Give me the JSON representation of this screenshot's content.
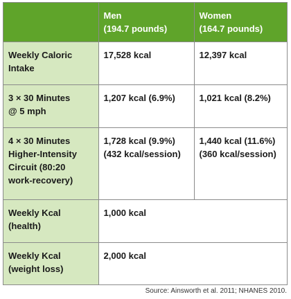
{
  "table": {
    "columns": [
      "",
      {
        "line1": "Men",
        "line2": "(194.7 pounds)"
      },
      {
        "line1": "Women",
        "line2": "(164.7 pounds)"
      }
    ],
    "rows": [
      {
        "label_lines": [
          "Weekly Caloric",
          "Intake"
        ],
        "men_lines": [
          "17,528 kcal"
        ],
        "women_lines": [
          "12,397 kcal"
        ]
      },
      {
        "label_lines": [
          "3 × 30 Minutes",
          "@ 5 mph"
        ],
        "men_lines": [
          "1,207 kcal (6.9%)"
        ],
        "women_lines": [
          "1,021 kcal (8.2%)"
        ]
      },
      {
        "label_lines": [
          "4 × 30 Minutes",
          "Higher-Intensity",
          "Circuit (80:20",
          "work-recovery)"
        ],
        "men_lines": [
          "1,728 kcal (9.9%)",
          "(432 kcal/session)"
        ],
        "women_lines": [
          "1,440 kcal (11.6%)",
          "(360 kcal/session)"
        ]
      },
      {
        "label_lines": [
          "Weekly Kcal",
          "(health)"
        ],
        "combined": "1,000 kcal"
      },
      {
        "label_lines": [
          "Weekly Kcal",
          "(weight loss)"
        ],
        "combined": "2,000 kcal"
      }
    ]
  },
  "source": "Source: Ainsworth et al. 2011; NHANES 2010.",
  "colors": {
    "header_bg": "#5fa42a",
    "label_bg": "#d6e8c0",
    "border": "#8a8a8a"
  }
}
